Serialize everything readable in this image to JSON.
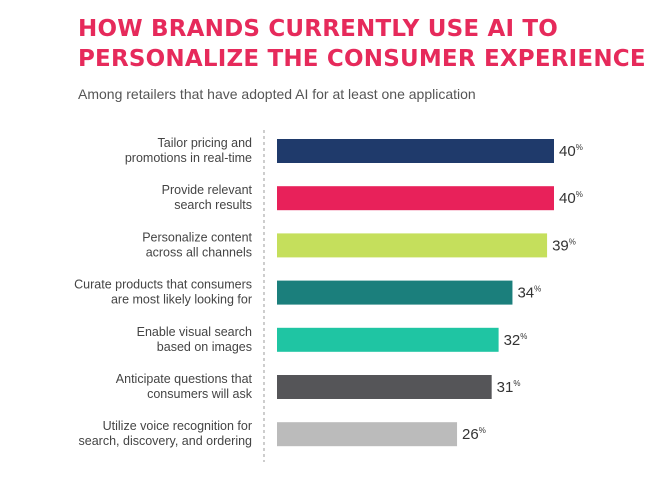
{
  "chart_data": {
    "type": "bar",
    "orientation": "horizontal",
    "title": "HOW BRANDS CURRENTLY USE AI TO PERSONALIZE THE CONSUMER EXPERIENCE",
    "subtitle": "Among retailers that have adopted AI for at least one application",
    "categories": [
      [
        "Tailor pricing and",
        "promotions in real-time"
      ],
      [
        "Provide relevant",
        "search results"
      ],
      [
        "Personalize content",
        "across all channels"
      ],
      [
        "Curate products that consumers",
        "are most likely looking for"
      ],
      [
        "Enable visual search",
        "based on images"
      ],
      [
        "Anticipate questions that",
        "consumers will ask"
      ],
      [
        "Utilize voice recognition for",
        "search, discovery, and ordering"
      ]
    ],
    "values": [
      40,
      40,
      39,
      34,
      32,
      31,
      26
    ],
    "value_suffix": "%",
    "bar_colors": [
      "#1f3a6b",
      "#e8215a",
      "#c5df5c",
      "#1b7f7c",
      "#1fc5a3",
      "#555558",
      "#bbbbbb"
    ],
    "xlim": [
      0,
      40
    ],
    "grid": false,
    "legend": "none",
    "axis_style": "dashed-vertical-baseline"
  }
}
